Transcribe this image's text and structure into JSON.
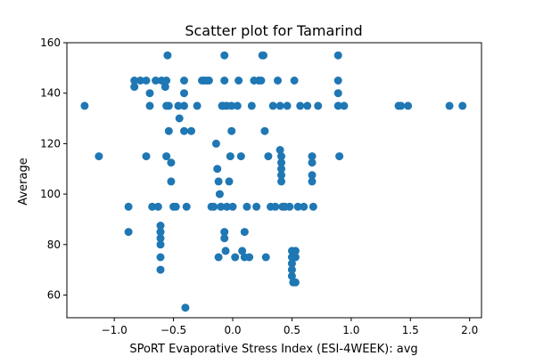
{
  "chart_data": {
    "type": "scatter",
    "title": "Scatter plot for Tamarind",
    "xlabel": "SPoRT Evaporative Stress Index (ESI-4WEEK): avg",
    "ylabel": "Average",
    "xlim": [
      -1.4,
      2.1
    ],
    "ylim": [
      51,
      160
    ],
    "xticks": [
      -1.0,
      -0.5,
      0.0,
      0.5,
      1.0,
      1.5,
      2.0
    ],
    "xtick_labels": [
      "−1.0",
      "−0.5",
      "0.0",
      "0.5",
      "1.0",
      "1.5",
      "2.0"
    ],
    "yticks": [
      60,
      80,
      100,
      120,
      140,
      160
    ],
    "ytick_labels": [
      "60",
      "80",
      "100",
      "120",
      "140",
      "160"
    ],
    "grid": false,
    "marker_color": "#1f77b4",
    "points": [
      [
        -1.25,
        135
      ],
      [
        -1.13,
        115
      ],
      [
        -0.88,
        95
      ],
      [
        -0.88,
        85
      ],
      [
        -0.83,
        145
      ],
      [
        -0.83,
        142.5
      ],
      [
        -0.78,
        145
      ],
      [
        -0.73,
        145
      ],
      [
        -0.7,
        140
      ],
      [
        -0.7,
        135
      ],
      [
        -0.73,
        115
      ],
      [
        -0.68,
        95
      ],
      [
        -0.65,
        145
      ],
      [
        -0.63,
        95
      ],
      [
        -0.61,
        87.5
      ],
      [
        -0.61,
        85
      ],
      [
        -0.61,
        82.5
      ],
      [
        -0.61,
        80
      ],
      [
        -0.61,
        75
      ],
      [
        -0.61,
        70
      ],
      [
        -0.6,
        145
      ],
      [
        -0.57,
        142.5
      ],
      [
        -0.56,
        145
      ],
      [
        -0.56,
        135
      ],
      [
        -0.56,
        115
      ],
      [
        -0.55,
        155
      ],
      [
        -0.54,
        125
      ],
      [
        -0.54,
        135
      ],
      [
        -0.52,
        105
      ],
      [
        -0.52,
        112.5
      ],
      [
        -0.5,
        95
      ],
      [
        -0.48,
        95
      ],
      [
        -0.46,
        135
      ],
      [
        -0.45,
        130
      ],
      [
        -0.41,
        145
      ],
      [
        -0.41,
        140
      ],
      [
        -0.41,
        135
      ],
      [
        -0.41,
        125
      ],
      [
        -0.4,
        55
      ],
      [
        -0.39,
        95
      ],
      [
        -0.35,
        125
      ],
      [
        -0.3,
        135
      ],
      [
        -0.26,
        145
      ],
      [
        -0.24,
        145
      ],
      [
        -0.22,
        145
      ],
      [
        -0.2,
        145
      ],
      [
        -0.18,
        95
      ],
      [
        -0.16,
        95
      ],
      [
        -0.14,
        120
      ],
      [
        -0.13,
        110
      ],
      [
        -0.12,
        105
      ],
      [
        -0.12,
        75
      ],
      [
        -0.11,
        100
      ],
      [
        -0.1,
        95
      ],
      [
        -0.09,
        135
      ],
      [
        -0.08,
        135
      ],
      [
        -0.07,
        155
      ],
      [
        -0.07,
        145
      ],
      [
        -0.07,
        82.5
      ],
      [
        -0.07,
        85
      ],
      [
        -0.06,
        77.5
      ],
      [
        -0.05,
        135
      ],
      [
        -0.05,
        95
      ],
      [
        -0.03,
        105
      ],
      [
        -0.02,
        115
      ],
      [
        -0.01,
        125
      ],
      [
        -0.01,
        135
      ],
      [
        0.0,
        95
      ],
      [
        0.02,
        75
      ],
      [
        0.04,
        135
      ],
      [
        0.05,
        145
      ],
      [
        0.07,
        115
      ],
      [
        0.08,
        77.5
      ],
      [
        0.1,
        85
      ],
      [
        0.1,
        75
      ],
      [
        0.12,
        95
      ],
      [
        0.14,
        75
      ],
      [
        0.16,
        135
      ],
      [
        0.18,
        145
      ],
      [
        0.2,
        95
      ],
      [
        0.22,
        145
      ],
      [
        0.24,
        145
      ],
      [
        0.25,
        155
      ],
      [
        0.26,
        155
      ],
      [
        0.27,
        125
      ],
      [
        0.28,
        75
      ],
      [
        0.3,
        115
      ],
      [
        0.32,
        95
      ],
      [
        0.34,
        135
      ],
      [
        0.36,
        95
      ],
      [
        0.38,
        145
      ],
      [
        0.4,
        135
      ],
      [
        0.4,
        117.5
      ],
      [
        0.41,
        115
      ],
      [
        0.41,
        112.5
      ],
      [
        0.41,
        110
      ],
      [
        0.41,
        107.5
      ],
      [
        0.41,
        105
      ],
      [
        0.42,
        95
      ],
      [
        0.44,
        95
      ],
      [
        0.46,
        135
      ],
      [
        0.48,
        95
      ],
      [
        0.5,
        77.5
      ],
      [
        0.5,
        75
      ],
      [
        0.5,
        72.5
      ],
      [
        0.5,
        70
      ],
      [
        0.5,
        67.5
      ],
      [
        0.51,
        65
      ],
      [
        0.52,
        145
      ],
      [
        0.53,
        77.5
      ],
      [
        0.53,
        75
      ],
      [
        0.53,
        65
      ],
      [
        0.55,
        95
      ],
      [
        0.57,
        135
      ],
      [
        0.6,
        95
      ],
      [
        0.63,
        135
      ],
      [
        0.67,
        115
      ],
      [
        0.67,
        112.5
      ],
      [
        0.67,
        107.5
      ],
      [
        0.67,
        105
      ],
      [
        0.68,
        95
      ],
      [
        0.72,
        135
      ],
      [
        0.89,
        155
      ],
      [
        0.89,
        145
      ],
      [
        0.89,
        140
      ],
      [
        0.89,
        135
      ],
      [
        0.9,
        115
      ],
      [
        0.94,
        135
      ],
      [
        1.4,
        135
      ],
      [
        1.42,
        135
      ],
      [
        1.48,
        135
      ],
      [
        1.83,
        135
      ],
      [
        1.94,
        135
      ]
    ]
  }
}
